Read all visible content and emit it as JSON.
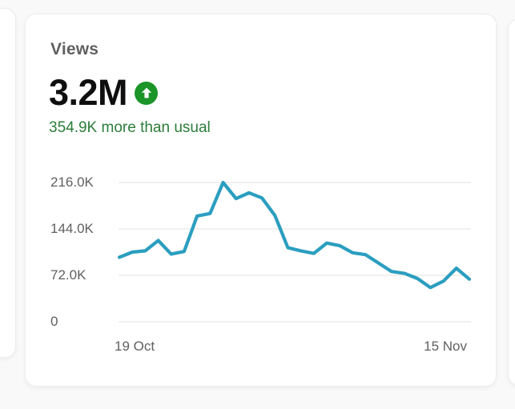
{
  "card": {
    "title": "Views",
    "metric_value": "3.2M",
    "trend_text": "354.9K more than usual",
    "trend_direction": "up"
  },
  "colors": {
    "page_bg": "#f9f9f9",
    "card_bg": "#ffffff",
    "title_gray": "#606060",
    "metric_black": "#0f0f0f",
    "badge_green": "#1b9428",
    "trend_green": "#2c7d3a",
    "axis_label": "#606060",
    "grid": "#e6e6e6",
    "line": "#2b9ec0"
  },
  "chart_data": {
    "type": "line",
    "title": "Views",
    "x_start_label": "19 Oct",
    "x_end_label": "15 Nov",
    "ytick_labels": [
      "216.0K",
      "144.0K",
      "72.0K",
      "0"
    ],
    "ytick_values": [
      216000,
      144000,
      72000,
      0
    ],
    "ylim": [
      0,
      216000
    ],
    "grid": true,
    "legend": "none",
    "series": [
      {
        "name": "Views",
        "values": [
          100000,
          108000,
          110000,
          126000,
          105000,
          109000,
          164000,
          168000,
          216000,
          191000,
          200000,
          192000,
          165000,
          115000,
          110000,
          106000,
          122000,
          118000,
          107000,
          104000,
          91000,
          78000,
          75000,
          67000,
          53000,
          63000,
          83000,
          66000
        ]
      }
    ]
  }
}
